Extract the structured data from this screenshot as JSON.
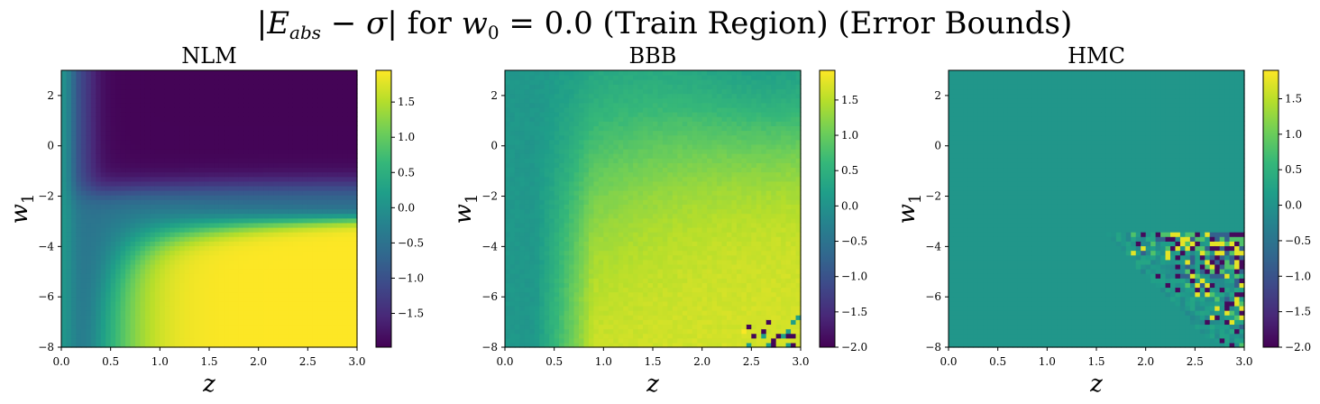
{
  "suptitle": "|Eabs − σ| for w0 = 0.0 (Train Region) (Error Bounds)",
  "colormap": "viridis",
  "chart_data": [
    {
      "type": "heatmap",
      "title": "NLM",
      "xlabel": "z",
      "ylabel": "w1",
      "xlim": [
        0.0,
        3.0
      ],
      "ylim": [
        -8,
        3
      ],
      "xticks": [
        "0.0",
        "0.5",
        "1.0",
        "1.5",
        "2.0",
        "2.5",
        "3.0"
      ],
      "yticks": [
        "2",
        "0",
        "−2",
        "−4",
        "−6",
        "−8"
      ],
      "colorbar": {
        "vmin": -1.98,
        "vmax": 1.95,
        "ticks": [
          "1.5",
          "1.0",
          "0.5",
          "0.0",
          "−0.5",
          "−1.0",
          "−1.5"
        ]
      }
    },
    {
      "type": "heatmap",
      "title": "BBB",
      "xlabel": "z",
      "ylabel": "w1",
      "xlim": [
        0.0,
        3.0
      ],
      "ylim": [
        -8,
        3
      ],
      "xticks": [
        "0.0",
        "0.5",
        "1.0",
        "1.5",
        "2.0",
        "2.5",
        "3.0"
      ],
      "yticks": [
        "2",
        "0",
        "−2",
        "−4",
        "−6",
        "−8"
      ],
      "colorbar": {
        "vmin": -2.0,
        "vmax": 1.92,
        "ticks": [
          "1.5",
          "1.0",
          "0.5",
          "0.0",
          "−0.5",
          "−1.0",
          "−1.5",
          "−2.0"
        ]
      }
    },
    {
      "type": "heatmap",
      "title": "HMC",
      "xlabel": "z",
      "ylabel": "w1",
      "xlim": [
        0.0,
        3.0
      ],
      "ylim": [
        -8,
        3
      ],
      "xticks": [
        "0.0",
        "0.5",
        "1.0",
        "1.5",
        "2.0",
        "2.5",
        "3.0"
      ],
      "yticks": [
        "2",
        "0",
        "−2",
        "−4",
        "−6",
        "−8"
      ],
      "colorbar": {
        "vmin": -2.0,
        "vmax": 1.9,
        "ticks": [
          "1.5",
          "1.0",
          "0.5",
          "0.0",
          "−0.5",
          "−1.0",
          "−1.5",
          "−2.0"
        ]
      }
    }
  ]
}
